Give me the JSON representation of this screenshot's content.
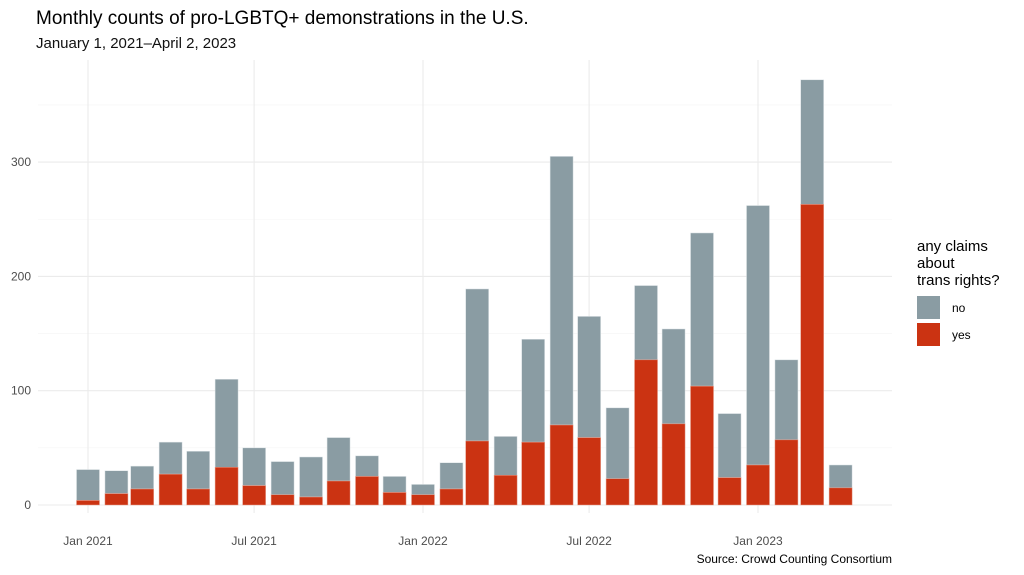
{
  "chart_data": {
    "type": "bar",
    "stacked": true,
    "title": "Monthly counts of pro-LGBTQ+ demonstrations in the U.S.",
    "subtitle": "January 1, 2021–April 2, 2023",
    "caption": "Source: Crowd Counting Consortium",
    "xlabel": "",
    "ylabel": "",
    "ylim": [
      0,
      380
    ],
    "yticks": [
      0,
      100,
      200,
      300
    ],
    "xticks": [
      {
        "label": "Jan 2021",
        "date": "2021-01-01"
      },
      {
        "label": "Jul 2021",
        "date": "2021-07-01"
      },
      {
        "label": "Jan 2022",
        "date": "2022-01-01"
      },
      {
        "label": "Jul 2022",
        "date": "2022-07-01"
      },
      {
        "label": "Jan 2023",
        "date": "2023-01-01"
      }
    ],
    "grid": true,
    "legend": {
      "title": "any claims about trans rights?",
      "title_lines": [
        "any claims",
        "about",
        "trans rights?"
      ],
      "position": "right",
      "entries": [
        {
          "label": "no",
          "color": "#8a9ca3"
        },
        {
          "label": "yes",
          "color": "#cb3312"
        }
      ]
    },
    "categories": [
      "2021-01",
      "2021-02",
      "2021-03",
      "2021-04",
      "2021-05",
      "2021-06",
      "2021-07",
      "2021-08",
      "2021-09",
      "2021-10",
      "2021-11",
      "2021-12",
      "2022-01",
      "2022-02",
      "2022-03",
      "2022-04",
      "2022-05",
      "2022-06",
      "2022-07",
      "2022-08",
      "2022-09",
      "2022-10",
      "2022-11",
      "2022-12",
      "2023-01",
      "2023-02",
      "2023-03",
      "2023-04"
    ],
    "series": [
      {
        "name": "yes",
        "color": "#cb3312",
        "values": [
          4,
          10,
          14,
          27,
          14,
          33,
          17,
          9,
          7,
          21,
          25,
          11,
          9,
          14,
          56,
          26,
          55,
          70,
          59,
          23,
          127,
          71,
          104,
          24,
          35,
          57,
          263,
          15
        ]
      },
      {
        "name": "no",
        "color": "#8a9ca3",
        "values": [
          27,
          20,
          20,
          28,
          33,
          77,
          33,
          29,
          35,
          38,
          18,
          14,
          9,
          23,
          133,
          34,
          90,
          235,
          106,
          62,
          65,
          83,
          134,
          56,
          227,
          70,
          109,
          20
        ]
      }
    ],
    "totals": [
      31,
      30,
      34,
      55,
      47,
      110,
      50,
      38,
      42,
      59,
      43,
      25,
      18,
      37,
      189,
      60,
      145,
      305,
      165,
      85,
      192,
      154,
      238,
      80,
      262,
      127,
      372,
      35
    ]
  }
}
